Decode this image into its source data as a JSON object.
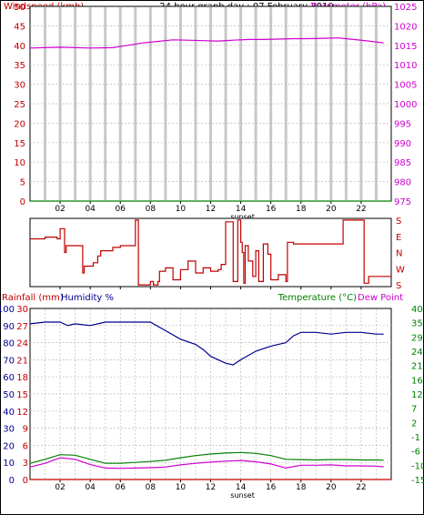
{
  "colors": {
    "red": "#c00000",
    "magenta": "#d000d0",
    "green": "#008000",
    "blue": "#000090",
    "navy_title": "#000000",
    "grid": "#c8c8c8",
    "axis_dark": "#000000"
  },
  "x_ticks": [
    "02",
    "04",
    "06",
    "08",
    "10",
    "12",
    "14",
    "16",
    "18",
    "20",
    "22"
  ],
  "sunset_label": "sunset",
  "chart_data": [
    {
      "id": "wind-baro",
      "type": "line",
      "title": "24 hour graph day : 07 February 2010",
      "left_axis_label": "Windspeed (kmh)",
      "right_axis_label": "Barometer (hPa)",
      "left_ticks": [
        "0",
        "5",
        "10",
        "15",
        "20",
        "25",
        "30",
        "35",
        "40",
        "45",
        "50"
      ],
      "right_ticks": [
        "975",
        "980",
        "985",
        "990",
        "995",
        "1000",
        "1005",
        "1010",
        "1015",
        "1020",
        "1025"
      ],
      "left_range": [
        0,
        50
      ],
      "right_range": [
        975,
        1025
      ],
      "x_range": [
        0,
        24
      ],
      "grid": true,
      "series": [
        {
          "name": "",
          "axis": "right",
          "color": "#d000d0",
          "x": [
            0,
            2,
            4,
            5.5,
            6.5,
            7.5,
            8.5,
            9.5,
            10.5,
            11.5,
            12.5,
            13.5,
            14.5,
            15.5,
            16.5,
            17.5,
            18.5,
            19.5,
            20.5,
            21.5,
            22.5,
            23.5
          ],
          "y": [
            1014.3,
            1014.5,
            1014.3,
            1014.4,
            1015,
            1015.6,
            1016,
            1016.4,
            1016.3,
            1016.2,
            1016.1,
            1016.3,
            1016.5,
            1016.5,
            1016.6,
            1016.7,
            1016.7,
            1016.8,
            1016.9,
            1016.5,
            1016.1,
            1015.6
          ]
        },
        {
          "name": "",
          "axis": "left",
          "color": "#008000",
          "x": [
            0,
            24
          ],
          "y": [
            0,
            0
          ]
        }
      ]
    },
    {
      "id": "wind-direction",
      "type": "line",
      "direction_labels": [
        "S",
        "E",
        "N",
        "W",
        "S"
      ],
      "y_range": [
        0,
        4
      ],
      "x_range": [
        0,
        24
      ],
      "series": [
        {
          "name": "",
          "color": "#c00000",
          "x": [
            0,
            1,
            1.8,
            2,
            2.3,
            2.4,
            3.5,
            3.6,
            4,
            4.2,
            4.5,
            4.7,
            5.5,
            6,
            7,
            7.2,
            8,
            8.2,
            8.5,
            8.6,
            9,
            9.5,
            10,
            10.5,
            11,
            11.5,
            12,
            12.5,
            12.7,
            13,
            13.5,
            13.8,
            14,
            14.1,
            14.2,
            14.3,
            14.5,
            14.8,
            15,
            15.2,
            15.5,
            15.8,
            16,
            16.5,
            17,
            17.1,
            17.5,
            18,
            19,
            20,
            20.5,
            20.8,
            21.5,
            22,
            22.2,
            22.5,
            23,
            23.5
          ],
          "y": [
            2.8,
            2.9,
            2.8,
            3.4,
            2.0,
            2.4,
            0.8,
            1.2,
            1.2,
            1.4,
            1.8,
            2.1,
            2.3,
            2.4,
            3.9,
            0.1,
            0.3,
            0.1,
            0.3,
            0.9,
            1.1,
            0.4,
            1.0,
            1.5,
            0.8,
            1.1,
            0.9,
            1.0,
            1.3,
            3.8,
            0.3,
            3.9,
            2.6,
            2.0,
            0.2,
            2.4,
            1.5,
            0.6,
            2.1,
            0.3,
            2.5,
            1.9,
            0.4,
            0.7,
            0.3,
            2.6,
            2.5,
            2.5,
            2.5,
            2.5,
            2.5,
            3.9,
            3.9,
            3.9,
            0.2,
            0.6,
            0.6,
            0.6
          ]
        }
      ]
    },
    {
      "id": "rain-hum-temp",
      "type": "line",
      "left_axis_label_rain": "Rainfall (mm)",
      "left_axis_label_hum": "Humidity %",
      "right_axis_label_temp": "Temperature (°C)",
      "right_axis_label_dew": "Dew Point",
      "humidity_ticks": [
        "0",
        "10",
        "20",
        "30",
        "40",
        "50",
        "60",
        "70",
        "80",
        "90",
        "100"
      ],
      "rain_ticks": [
        "0",
        "3",
        "6",
        "9",
        "12",
        "15",
        "18",
        "21",
        "24",
        "27",
        "30"
      ],
      "temp_ticks": [
        "-15",
        "-10",
        "-6",
        "-1",
        "2",
        "7",
        "12",
        "16",
        "21",
        "24",
        "29",
        "35",
        "40"
      ],
      "humidity_range": [
        0,
        100
      ],
      "temp_range": [
        -15,
        40
      ],
      "x_range": [
        0,
        24
      ],
      "grid": true,
      "series": [
        {
          "name": "",
          "axis": "humidity",
          "color": "#000090",
          "x": [
            0,
            1,
            2,
            2.5,
            3,
            4,
            5,
            6,
            7,
            8,
            9,
            10,
            11,
            11.5,
            12,
            12.5,
            13,
            13.5,
            14,
            15,
            16,
            17,
            17.5,
            18,
            19,
            20,
            21,
            22,
            23,
            23.5
          ],
          "y": [
            91,
            92,
            92,
            90,
            91,
            90,
            92,
            92,
            92,
            92,
            87,
            82,
            79,
            76,
            72,
            70,
            68,
            67,
            70,
            75,
            78,
            80,
            84,
            86,
            86,
            85,
            86,
            86,
            85,
            85
          ]
        },
        {
          "name": "",
          "axis": "temp",
          "color": "#008000",
          "x": [
            0,
            1,
            2,
            3,
            4,
            5,
            6,
            7,
            8,
            9,
            10,
            11,
            12,
            13,
            14,
            15,
            16,
            17,
            18,
            19,
            20,
            21,
            22,
            23,
            23.5
          ],
          "y": [
            -9.8,
            -8.5,
            -7.0,
            -7.2,
            -8.5,
            -9.8,
            -9.8,
            -9.5,
            -9.2,
            -8.8,
            -8.0,
            -7.3,
            -6.8,
            -6.5,
            -6.3,
            -6.6,
            -7.3,
            -8.5,
            -8.6,
            -8.7,
            -8.6,
            -8.6,
            -8.7,
            -8.7,
            -8.8
          ]
        },
        {
          "name": "",
          "axis": "temp",
          "color": "#d000d0",
          "x": [
            0,
            1,
            2,
            3,
            4,
            5,
            6,
            7,
            8,
            9,
            10,
            11,
            12,
            13,
            14,
            15,
            16,
            17,
            18,
            19,
            20,
            21,
            22,
            23,
            23.5
          ],
          "y": [
            -11.0,
            -9.8,
            -8.0,
            -8.5,
            -10.2,
            -11.3,
            -11.4,
            -11.3,
            -11.2,
            -11.0,
            -10.3,
            -9.8,
            -9.4,
            -9.1,
            -8.9,
            -9.3,
            -10.0,
            -11.3,
            -10.4,
            -10.4,
            -10.3,
            -10.6,
            -10.6,
            -10.7,
            -10.9
          ]
        },
        {
          "name": "",
          "axis": "rain",
          "color": "#c00000",
          "x": [
            0,
            24
          ],
          "y": [
            0,
            0
          ]
        }
      ]
    }
  ]
}
